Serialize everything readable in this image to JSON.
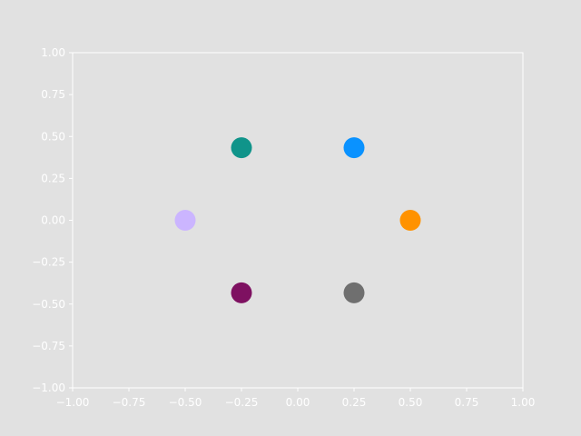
{
  "chart_data": {
    "type": "scatter",
    "title": "",
    "xlabel": "",
    "ylabel": "",
    "xlim": [
      -1.0,
      1.0
    ],
    "ylim": [
      -1.0,
      1.0
    ],
    "grid": false,
    "background": "#e1e1e1",
    "axes_color": "#ffffff",
    "x_ticks": [
      -1.0,
      -0.75,
      -0.5,
      -0.25,
      0.0,
      0.25,
      0.5,
      0.75,
      1.0
    ],
    "x_tick_labels": [
      "−1.00",
      "−0.75",
      "−0.50",
      "−0.25",
      "0.00",
      "0.25",
      "0.50",
      "0.75",
      "1.00"
    ],
    "y_ticks": [
      -1.0,
      -0.75,
      -0.5,
      -0.25,
      0.0,
      0.25,
      0.5,
      0.75,
      1.0
    ],
    "y_tick_labels": [
      "−1.00",
      "−0.75",
      "−0.50",
      "−0.25",
      "0.00",
      "0.25",
      "0.50",
      "0.75",
      "1.00"
    ],
    "points": [
      {
        "x": 0.5,
        "y": 0.0,
        "color": "#ff9200"
      },
      {
        "x": 0.25,
        "y": 0.433,
        "color": "#0a92ff"
      },
      {
        "x": -0.25,
        "y": 0.433,
        "color": "#10948a"
      },
      {
        "x": -0.5,
        "y": 0.0,
        "color": "#cbb5ff"
      },
      {
        "x": -0.25,
        "y": -0.433,
        "color": "#7e1161"
      },
      {
        "x": 0.25,
        "y": -0.433,
        "color": "#6f6f6f"
      }
    ]
  }
}
